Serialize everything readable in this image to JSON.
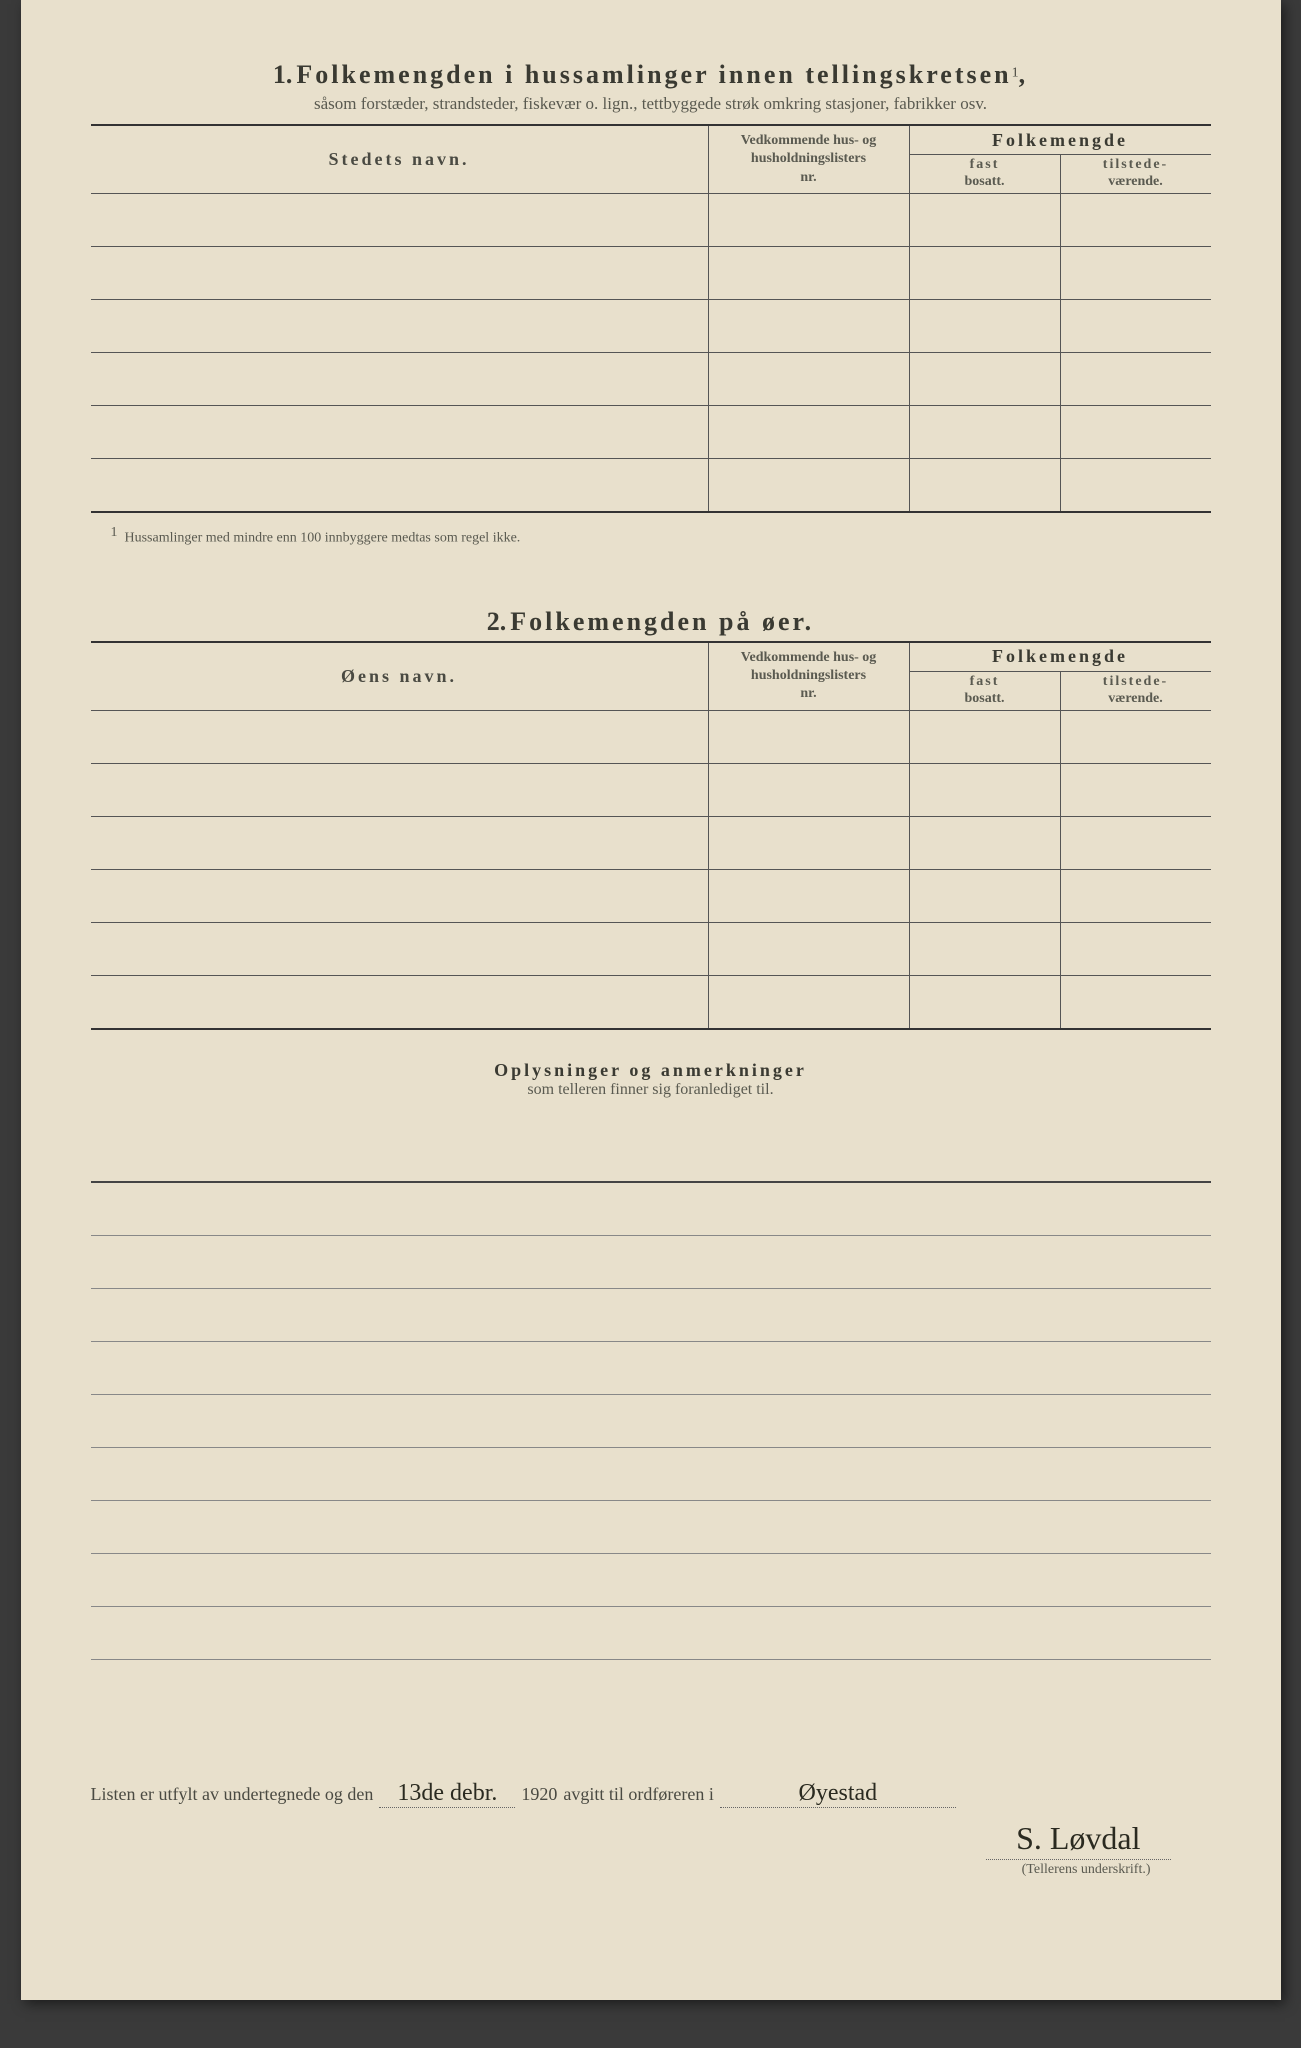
{
  "section1": {
    "number": "1.",
    "title": "Folkemengden i hussamlinger innen tellingskretsen",
    "superscript": "1",
    "subtitle": "såsom forstæder, strandsteder, fiskevær o. lign., tettbyggede strøk omkring stasjoner, fabrikker osv.",
    "columns": {
      "name": "Stedets navn.",
      "mid_line1": "Vedkommende hus- og",
      "mid_line2": "husholdningslisters",
      "mid_line3": "nr.",
      "folk_header": "Folkemengde",
      "fast_bold": "fast",
      "fast_plain": "bosatt.",
      "til_bold": "tilstede-",
      "til_plain": "værende."
    },
    "rows": [
      "",
      "",
      "",
      "",
      "",
      ""
    ],
    "footnote_marker": "1",
    "footnote": "Hussamlinger med mindre enn 100 innbyggere medtas som regel ikke."
  },
  "section2": {
    "number": "2.",
    "title": "Folkemengden på øer.",
    "columns": {
      "name": "Øens navn.",
      "mid_line1": "Vedkommende hus- og",
      "mid_line2": "husholdningslisters",
      "mid_line3": "nr.",
      "folk_header": "Folkemengde",
      "fast_bold": "fast",
      "fast_plain": "bosatt.",
      "til_bold": "tilstede-",
      "til_plain": "værende."
    },
    "rows": [
      "",
      "",
      "",
      "",
      "",
      ""
    ]
  },
  "remarks": {
    "title": "Oplysninger og anmerkninger",
    "subtitle": "som telleren finner sig foranlediget til.",
    "line_count": 10
  },
  "footer": {
    "prefix": "Listen er utfylt av undertegnede og den",
    "date_handwritten": "13de debr.",
    "year": "1920",
    "mid": "avgitt til ordføreren i",
    "place_handwritten": "Øyestad",
    "signature_handwritten": "S. Løvdal",
    "signature_caption": "(Tellerens underskrift.)"
  },
  "colors": {
    "paper": "#e8e0cc",
    "ink": "#3a3a32",
    "rule": "#555",
    "faint": "#5a5a50"
  }
}
